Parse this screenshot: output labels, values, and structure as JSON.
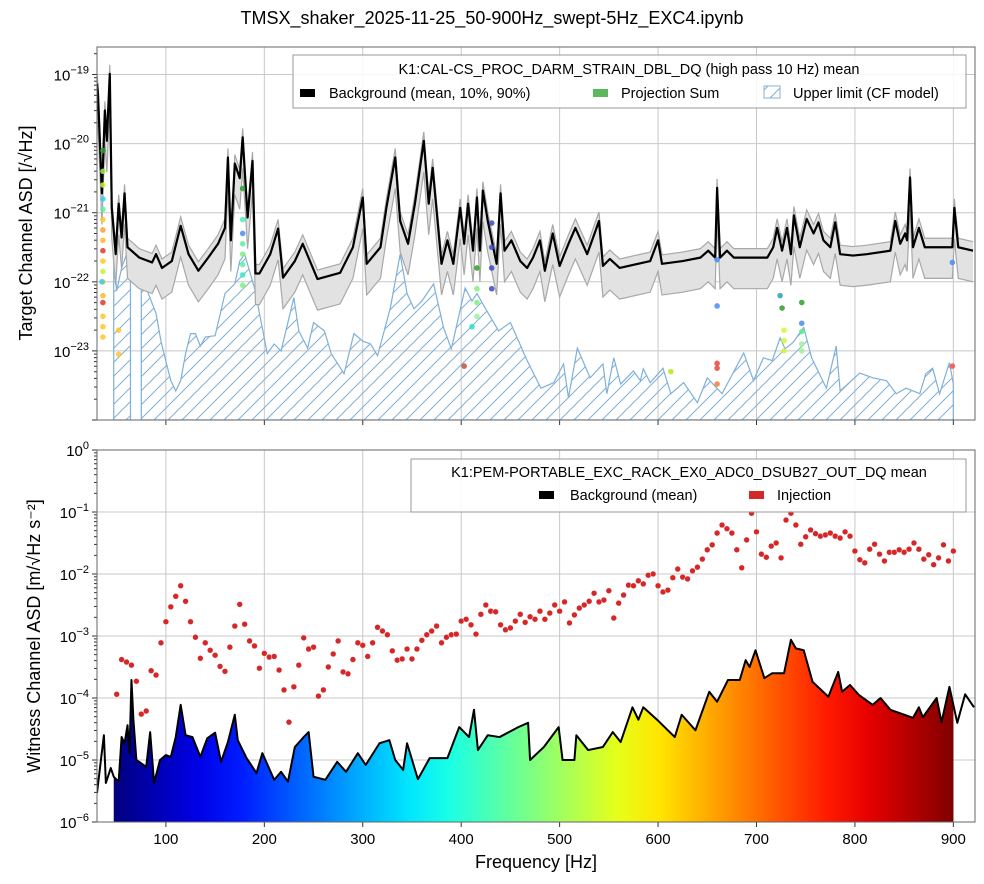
{
  "title": "TMSX_shaker_2025-11-25_50-900Hz_swept-5Hz_EXC4.ipynb",
  "chart_data": [
    {
      "type": "line",
      "panel": "top",
      "ylabel": "Target Channel ASD [/√Hz]",
      "xlim": [
        30,
        922
      ],
      "ylim": [
        1e-24,
        2.5e-19
      ],
      "yscale": "log",
      "grid": true,
      "yticks_exp": [
        -19,
        -20,
        -21,
        -22,
        -23
      ],
      "xticks": [
        100,
        200,
        300,
        400,
        500,
        600,
        700,
        800,
        900
      ],
      "legend": {
        "placement": "top-right",
        "title": "K1:CAL-CS_PROC_DARM_STRAIN_DBL_DQ (high pass 10 Hz) mean",
        "entries": [
          "Background (mean, 10%, 90%)",
          "Projection Sum",
          "Upper limit (CF model)"
        ]
      },
      "background_mean": {
        "x": [
          30,
          31,
          35,
          38,
          40,
          43,
          45,
          49,
          52,
          55,
          58,
          61,
          73,
          86,
          90,
          96,
          106,
          115,
          123,
          133,
          143,
          153,
          160,
          163,
          166,
          170,
          175,
          178,
          183,
          188,
          191,
          195,
          206,
          214,
          219,
          231,
          239,
          254,
          277,
          290,
          300,
          304,
          318,
          324,
          333,
          338,
          346,
          353,
          362,
          367,
          371,
          380,
          386,
          392,
          399,
          403,
          407,
          412,
          416,
          419,
          422,
          427,
          436,
          440,
          444,
          451,
          460,
          467,
          473,
          480,
          485,
          493,
          500,
          509,
          516,
          528,
          534,
          540,
          544,
          551,
          561,
          592,
          600,
          604,
          625,
          643,
          651,
          658,
          660,
          663,
          670,
          677,
          711,
          717,
          721,
          726,
          731,
          735,
          738,
          744,
          751,
          758,
          763,
          768,
          775,
          780,
          785,
          798,
          812,
          836,
          841,
          846,
          851,
          853,
          856,
          859,
          865,
          871,
          890,
          899,
          901,
          905,
          920
        ],
        "log10_asd": [
          -19.13,
          -19.28,
          -20.72,
          -19.52,
          -19.96,
          -18.99,
          -20.93,
          -21.6,
          -20.87,
          -21.36,
          -20.72,
          -21.5,
          -21.65,
          -21.72,
          -21.6,
          -21.8,
          -21.7,
          -21.19,
          -21.6,
          -21.84,
          -21.65,
          -21.45,
          -21.22,
          -20.2,
          -21.4,
          -20.29,
          -20.5,
          -19.91,
          -21.07,
          -20.25,
          -21.88,
          -21.88,
          -21.6,
          -21.23,
          -21.94,
          -21.7,
          -21.45,
          -21.96,
          -21.87,
          -21.5,
          -20.78,
          -21.74,
          -21.5,
          -20.93,
          -20.2,
          -21.12,
          -21.45,
          -20.87,
          -19.96,
          -20.87,
          -20.35,
          -21.74,
          -21.4,
          -21.74,
          -20.93,
          -21.45,
          -20.87,
          -21.55,
          -20.78,
          -21.55,
          -20.68,
          -21.12,
          -21.74,
          -20.72,
          -21.55,
          -21.4,
          -21.7,
          -21.8,
          -21.65,
          -21.4,
          -21.84,
          -21.3,
          -21.77,
          -21.45,
          -21.22,
          -21.6,
          -21.36,
          -21.12,
          -21.77,
          -21.67,
          -21.8,
          -21.7,
          -21.4,
          -21.74,
          -21.7,
          -21.65,
          -21.55,
          -21.65,
          -20.64,
          -21.65,
          -21.55,
          -21.65,
          -21.65,
          -21.5,
          -21.22,
          -21.55,
          -21.22,
          -21.6,
          -21.04,
          -21.5,
          -21.09,
          -21.3,
          -21.14,
          -21.4,
          -21.5,
          -21.14,
          -21.6,
          -21.62,
          -21.6,
          -21.55,
          -21.12,
          -21.45,
          -21.3,
          -21.4,
          -20.49,
          -21.5,
          -21.22,
          -21.5,
          -21.5,
          -21.5,
          -20.93,
          -21.5,
          -21.55
        ],
        "p10_offset_decades": -0.45,
        "p90_offset_decades": 0.13
      },
      "upper_limit": {
        "x": [
          47,
          50,
          55,
          60,
          64,
          null,
          75,
          80,
          90,
          95,
          100,
          105,
          110,
          115,
          120,
          125,
          130,
          135,
          140,
          150,
          160,
          170,
          175,
          180,
          190,
          203,
          210,
          217,
          230,
          235,
          244,
          250,
          261,
          268,
          281,
          291,
          300,
          308,
          315,
          328,
          338,
          345,
          352,
          360,
          372,
          382,
          390,
          404,
          411,
          416,
          426,
          438,
          450,
          467,
          481,
          494,
          504,
          509,
          518,
          531,
          544,
          548,
          555,
          562,
          575,
          582,
          585,
          592,
          605,
          613,
          626,
          640,
          650,
          665,
          687,
          697,
          707,
          716,
          724,
          729,
          737,
          748,
          756,
          771,
          781,
          785,
          805,
          818,
          832,
          842,
          852,
          866,
          872,
          879,
          886,
          896,
          900
        ],
        "log10_asd": [
          -21.6,
          -22.13,
          -21.8,
          -21.6,
          -21.6,
          null,
          -21.94,
          -22.09,
          -22.46,
          -22.86,
          -23.15,
          -23.43,
          -23.58,
          -23.43,
          -23.04,
          -22.75,
          -22.75,
          -22.93,
          -22.8,
          -22.78,
          -22.17,
          -22.03,
          -21.7,
          -21.6,
          -22.09,
          -23.04,
          -22.9,
          -23.0,
          -22.23,
          -22.71,
          -22.96,
          -22.59,
          -22.71,
          -23.04,
          -23.33,
          -22.75,
          -22.86,
          -22.9,
          -23.07,
          -22.38,
          -21.6,
          -22.17,
          -22.39,
          -22.28,
          -22.03,
          -22.66,
          -22.97,
          -22.09,
          -22.28,
          -22.17,
          -22.42,
          -22.71,
          -22.59,
          -23.14,
          -23.54,
          -23.46,
          -23.19,
          -23.68,
          -22.96,
          -23.39,
          -23.19,
          -23.62,
          -23.1,
          -23.48,
          -23.29,
          -23.43,
          -23.26,
          -23.46,
          -23.25,
          -23.62,
          -23.46,
          -23.75,
          -23.39,
          -23.62,
          -23.03,
          -23.43,
          -23.1,
          -23.14,
          -22.81,
          -22.97,
          -22.88,
          -22.66,
          -23.1,
          -23.54,
          -22.93,
          -23.58,
          -23.32,
          -23.39,
          -23.43,
          -23.62,
          -23.54,
          -23.62,
          -23.33,
          -23.25,
          -23.62,
          -23.17,
          -23.48
        ]
      },
      "projection_points": [
        [
          36,
          -20.1,
          "#2ca02c"
        ],
        [
          36,
          -20.4,
          "#9fef55"
        ],
        [
          36,
          -20.6,
          "#c8f23a"
        ],
        [
          36,
          -20.8,
          "#3cc8f5"
        ],
        [
          36,
          -20.95,
          "#5ff0a0"
        ],
        [
          36,
          -21.1,
          "#ffc530"
        ],
        [
          36,
          -21.25,
          "#f9a030"
        ],
        [
          36,
          -21.4,
          "#ffb830"
        ],
        [
          36,
          -21.55,
          "#dd3a2a"
        ],
        [
          36,
          -21.7,
          "#ffc530"
        ],
        [
          36,
          -21.85,
          "#c8f23a"
        ],
        [
          36,
          -22.0,
          "#ffc530"
        ],
        [
          35,
          -22.0,
          "#3cc8f5"
        ],
        [
          36,
          -22.2,
          "#ffb830"
        ],
        [
          36,
          -22.3,
          "#dd3a2a"
        ],
        [
          36,
          -22.5,
          "#ffc530"
        ],
        [
          36,
          -22.65,
          "#ffc530"
        ],
        [
          36,
          -22.8,
          "#ffc530"
        ],
        [
          52,
          -22.7,
          "#ffc530"
        ],
        [
          52,
          -23.05,
          "#ffc530"
        ],
        [
          178,
          -20.65,
          "#2ca02c"
        ],
        [
          178,
          -21.1,
          "#4ff0b0"
        ],
        [
          178,
          -21.3,
          "#4a8cf0"
        ],
        [
          178,
          -21.45,
          "#5ff0a0"
        ],
        [
          178,
          -21.6,
          "#7ff080"
        ],
        [
          178,
          -21.75,
          "#5ff0a0"
        ],
        [
          178,
          -21.9,
          "#3ce6c8"
        ],
        [
          178,
          -22.05,
          "#7ff080"
        ],
        [
          403,
          -23.22,
          "#c0503a"
        ],
        [
          411,
          -22.65,
          "#2ce0c8"
        ],
        [
          416,
          -21.8,
          "#2ca02c"
        ],
        [
          416,
          -22.1,
          "#7ff080"
        ],
        [
          416,
          -22.3,
          "#7ff080"
        ],
        [
          416,
          -22.5,
          "#9ff09a"
        ],
        [
          431,
          -21.15,
          "#3a4cc0"
        ],
        [
          431,
          -21.5,
          "#3a4cc0"
        ],
        [
          431,
          -21.8,
          "#3a4cc0"
        ],
        [
          431,
          -22.1,
          "#3a4cc0"
        ],
        [
          613,
          -23.3,
          "#b5e61d"
        ],
        [
          660,
          -21.68,
          "#4a8cf0"
        ],
        [
          660,
          -22.35,
          "#4a8cf0"
        ],
        [
          660,
          -23.18,
          "#e8463a"
        ],
        [
          660,
          -23.25,
          "#e8463a"
        ],
        [
          660,
          -23.48,
          "#f47f3a"
        ],
        [
          724,
          -22.2,
          "#2aa0b8"
        ],
        [
          726,
          -22.38,
          "#2ca02c"
        ],
        [
          728,
          -22.7,
          "#d6f53a"
        ],
        [
          728,
          -22.85,
          "#d6f53a"
        ],
        [
          728,
          -23.0,
          "#d6f53a"
        ],
        [
          746,
          -22.3,
          "#2ca02c"
        ],
        [
          746,
          -22.6,
          "#4a8cf0"
        ],
        [
          746,
          -22.72,
          "#5ff080"
        ],
        [
          746,
          -22.9,
          "#9ff09a"
        ],
        [
          746,
          -23.0,
          "#9ff09a"
        ],
        [
          899,
          -21.72,
          "#4a8cf0"
        ],
        [
          899,
          -23.22,
          "#f0504a"
        ]
      ]
    },
    {
      "type": "scatter",
      "panel": "bottom",
      "xlabel": "Frequency [Hz]",
      "ylabel": "Witness Channel ASD [m/√Hz s⁻²]",
      "xlim": [
        30,
        922
      ],
      "ylim": [
        1e-06,
        1
      ],
      "yscale": "log",
      "grid": true,
      "yticks_exp": [
        0,
        -1,
        -2,
        -3,
        -4,
        -5,
        -6
      ],
      "xticks": [
        100,
        200,
        300,
        400,
        500,
        600,
        700,
        800,
        900
      ],
      "legend": {
        "placement": "top-right",
        "title": "K1:PEM-PORTABLE_EXC_RACK_EX0_ADC0_DSUB27_OUT_DQ mean",
        "entries": [
          "Background (mean)",
          "Injection"
        ]
      },
      "colors": {
        "injection": "#d62728",
        "background": "#000000"
      },
      "background_mean": {
        "x": [
          30,
          37,
          39,
          44,
          47,
          52,
          55,
          58,
          61,
          63,
          65,
          67,
          70,
          80,
          84,
          88,
          94,
          100,
          105,
          110,
          115,
          120,
          127,
          135,
          142,
          150,
          156,
          163,
          170,
          173,
          182,
          192,
          198,
          210,
          217,
          224,
          231,
          240,
          245,
          250,
          262,
          274,
          283,
          295,
          303,
          317,
          327,
          333,
          341,
          345,
          356,
          368,
          386,
          398,
          408,
          413,
          417,
          427,
          439,
          458,
          468,
          470,
          484,
          499,
          503,
          515,
          517,
          529,
          544,
          554,
          562,
          574,
          580,
          585,
          599,
          617,
          624,
          638,
          652,
          660,
          671,
          683,
          689,
          693,
          699,
          708,
          716,
          728,
          735,
          740,
          748,
          757,
          773,
          783,
          787,
          795,
          804,
          818,
          826,
          836,
          859,
          865,
          869,
          883,
          888,
          896,
          904,
          912,
          921
        ],
        "log10_asd": [
          -5.53,
          -4.6,
          -5.37,
          -5.13,
          -5.27,
          -5.35,
          -4.63,
          -4.73,
          -4.44,
          -4.89,
          -3.71,
          -4.35,
          -5.0,
          -5.11,
          -4.55,
          -5.37,
          -5.0,
          -4.92,
          -4.95,
          -4.63,
          -4.11,
          -4.6,
          -4.63,
          -4.95,
          -4.65,
          -4.56,
          -5.03,
          -4.71,
          -4.27,
          -4.68,
          -4.97,
          -5.21,
          -4.89,
          -5.32,
          -5.19,
          -5.35,
          -4.79,
          -4.63,
          -4.55,
          -5.27,
          -5.32,
          -5.03,
          -5.19,
          -4.89,
          -5.08,
          -4.73,
          -4.68,
          -5.0,
          -5.16,
          -4.73,
          -5.31,
          -4.97,
          -4.97,
          -4.47,
          -4.63,
          -4.19,
          -4.84,
          -4.6,
          -4.63,
          -4.47,
          -4.4,
          -5.0,
          -4.79,
          -4.47,
          -5.0,
          -5.0,
          -4.6,
          -4.84,
          -4.79,
          -4.55,
          -4.71,
          -4.15,
          -4.35,
          -4.15,
          -4.35,
          -4.63,
          -4.27,
          -4.52,
          -3.9,
          -4.06,
          -3.71,
          -3.71,
          -3.39,
          -3.5,
          -3.23,
          -3.68,
          -3.6,
          -3.6,
          -3.06,
          -3.2,
          -3.23,
          -3.74,
          -3.98,
          -3.58,
          -3.9,
          -3.79,
          -3.95,
          -4.11,
          -4.0,
          -4.19,
          -4.32,
          -4.15,
          -4.31,
          -4.0,
          -4.39,
          -3.82,
          -4.4,
          -3.94,
          -4.15
        ]
      },
      "colored_fill_range_hz": [
        47,
        900
      ],
      "injection": {
        "x_start": 50,
        "x_step": 5,
        "log10_asd": [
          -3.94,
          -3.38,
          -3.42,
          -3.47,
          -3.73,
          -4.26,
          -4.21,
          -3.56,
          -3.63,
          -3.11,
          -2.77,
          -2.53,
          -2.36,
          -2.19,
          -2.44,
          -2.77,
          -3.02,
          -3.36,
          -3.11,
          -3.23,
          -3.31,
          -3.49,
          -3.57,
          -3.18,
          -2.84,
          -2.49,
          -2.81,
          -3.08,
          -3.16,
          -3.52,
          -3.28,
          -3.34,
          -3.33,
          -3.55,
          -3.87,
          -4.39,
          -3.82,
          -3.47,
          -3.03,
          -3.21,
          -3.18,
          -3.97,
          -3.87,
          -3.5,
          -3.29,
          -3.08,
          -3.58,
          -3.61,
          -3.38,
          -3.11,
          -3.15,
          -3.33,
          -3.11,
          -2.86,
          -2.92,
          -2.98,
          -3.24,
          -3.39,
          -3.37,
          -3.21,
          -3.37,
          -3.21,
          -3.07,
          -2.98,
          -2.92,
          -2.84,
          -3.11,
          -3.02,
          -2.98,
          -2.97,
          -2.76,
          -2.73,
          -2.82,
          -2.97,
          -2.65,
          -2.5,
          -2.6,
          -2.61,
          -2.82,
          -2.9,
          -2.87,
          -2.76,
          -2.65,
          -2.78,
          -2.69,
          -2.73,
          -2.6,
          -2.73,
          -2.63,
          -2.5,
          -2.6,
          -2.45,
          -2.79,
          -2.66,
          -2.55,
          -2.5,
          -2.44,
          -2.31,
          -2.45,
          -2.42,
          -2.27,
          -2.71,
          -2.47,
          -2.34,
          -2.18,
          -2.19,
          -2.11,
          -2.16,
          -2.02,
          -2.0,
          -2.19,
          -2.29,
          -2.26,
          -2.06,
          -1.92,
          -2.05,
          -2.08,
          -1.95,
          -1.89,
          -1.76,
          -1.61,
          -1.53,
          -1.34,
          -1.21,
          -1.27,
          -1.34,
          -1.61,
          -1.9,
          -1.45,
          -1.02,
          -1.32,
          -1.68,
          -1.73,
          -1.55,
          -1.5,
          -1.74,
          -1.13,
          -1.02,
          -1.21,
          -1.52,
          -1.4,
          -1.29,
          -1.35,
          -1.39,
          -1.37,
          -1.34,
          -1.39,
          -1.42,
          -1.32,
          -1.39,
          -1.63,
          -1.77,
          -1.82,
          -1.6,
          -1.52,
          -1.68,
          -1.79,
          -1.65,
          -1.65,
          -1.61,
          -1.65,
          -1.6,
          -1.5,
          -1.6,
          -1.76,
          -1.69,
          -1.85,
          -1.74,
          -1.53,
          -1.79,
          -1.63
        ]
      }
    }
  ]
}
